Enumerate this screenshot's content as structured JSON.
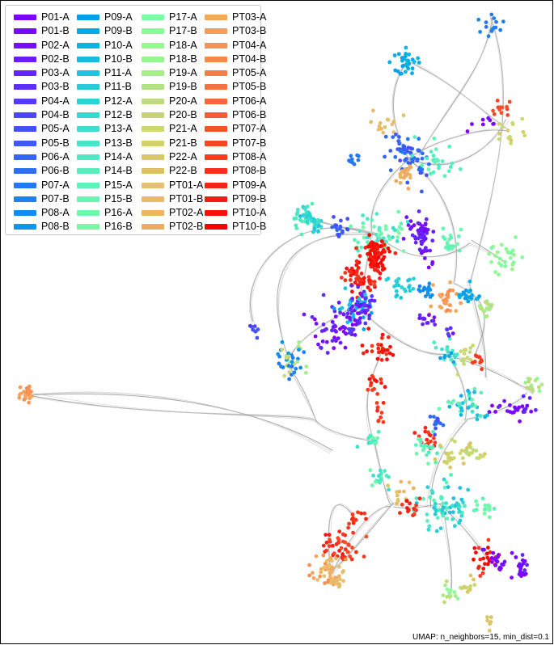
{
  "chart_data": {
    "type": "scatter",
    "title": "",
    "xlabel": "",
    "ylabel": "",
    "axes_visible": false,
    "legend_position": "top-left",
    "legend_columns": 4,
    "annotation": "UMAP: n_neighbors=15, min_dist=0.1",
    "series": [
      {
        "name": "P01-A",
        "color": "#7f00ff"
      },
      {
        "name": "P01-B",
        "color": "#7a08ff"
      },
      {
        "name": "P02-A",
        "color": "#7310ff"
      },
      {
        "name": "P02-B",
        "color": "#6c1bfe"
      },
      {
        "name": "P03-A",
        "color": "#6426fe"
      },
      {
        "name": "P03-B",
        "color": "#5c30fd"
      },
      {
        "name": "P04-A",
        "color": "#543bfc"
      },
      {
        "name": "P04-B",
        "color": "#4c46fb"
      },
      {
        "name": "P05-A",
        "color": "#4450fa"
      },
      {
        "name": "P05-B",
        "color": "#3c5af8"
      },
      {
        "name": "P06-A",
        "color": "#3465f7"
      },
      {
        "name": "P06-B",
        "color": "#2c6ff5"
      },
      {
        "name": "P07-A",
        "color": "#2479f3"
      },
      {
        "name": "P07-B",
        "color": "#1c83f1"
      },
      {
        "name": "P08-A",
        "color": "#148cef"
      },
      {
        "name": "P08-B",
        "color": "#0c96ec"
      },
      {
        "name": "P09-A",
        "color": "#04a0e9"
      },
      {
        "name": "P09-B",
        "color": "#06aae6"
      },
      {
        "name": "P10-A",
        "color": "#0eb2e3"
      },
      {
        "name": "P10-B",
        "color": "#16bbe0"
      },
      {
        "name": "P11-A",
        "color": "#1ec3dc"
      },
      {
        "name": "P11-B",
        "color": "#26cbd8"
      },
      {
        "name": "P12-A",
        "color": "#2ed2d4"
      },
      {
        "name": "P12-B",
        "color": "#36d9d0"
      },
      {
        "name": "P13-A",
        "color": "#3edfcc"
      },
      {
        "name": "P13-B",
        "color": "#46e5c7"
      },
      {
        "name": "P14-A",
        "color": "#4eeac2"
      },
      {
        "name": "P14-B",
        "color": "#56eebd"
      },
      {
        "name": "P15-A",
        "color": "#5ef2b8"
      },
      {
        "name": "P15-B",
        "color": "#66f5b2"
      },
      {
        "name": "P16-A",
        "color": "#6ef8ad"
      },
      {
        "name": "P16-B",
        "color": "#76faa7"
      },
      {
        "name": "P17-A",
        "color": "#7efca1"
      },
      {
        "name": "P17-B",
        "color": "#86fd9b"
      },
      {
        "name": "P18-A",
        "color": "#90fb95"
      },
      {
        "name": "P18-B",
        "color": "#9af48e"
      },
      {
        "name": "P19-A",
        "color": "#a6ec88"
      },
      {
        "name": "P19-B",
        "color": "#b2e382"
      },
      {
        "name": "P20-A",
        "color": "#bedc7c"
      },
      {
        "name": "P20-B",
        "color": "#c8d376"
      },
      {
        "name": "P21-A",
        "color": "#ccd870"
      },
      {
        "name": "P21-B",
        "color": "#d2d06a"
      },
      {
        "name": "P22-A",
        "color": "#d8c864"
      },
      {
        "name": "P22-B",
        "color": "#dec05e"
      },
      {
        "name": "PT01-A",
        "color": "#e4c070"
      },
      {
        "name": "PT01-B",
        "color": "#e8bb68"
      },
      {
        "name": "PT02-A",
        "color": "#ecb463"
      },
      {
        "name": "PT02-B",
        "color": "#f0ac5e"
      },
      {
        "name": "PT03-A",
        "color": "#f5a75e"
      },
      {
        "name": "PT03-B",
        "color": "#f59c58"
      },
      {
        "name": "PT04-A",
        "color": "#f69252"
      },
      {
        "name": "PT04-B",
        "color": "#f7884b"
      },
      {
        "name": "PT05-A",
        "color": "#f77d45"
      },
      {
        "name": "PT05-B",
        "color": "#f7723f"
      },
      {
        "name": "PT06-A",
        "color": "#f76739"
      },
      {
        "name": "PT06-B",
        "color": "#f75c33"
      },
      {
        "name": "PT07-A",
        "color": "#f7512c"
      },
      {
        "name": "PT07-B",
        "color": "#f74626"
      },
      {
        "name": "PT08-A",
        "color": "#f73b20"
      },
      {
        "name": "PT08-B",
        "color": "#f7301a"
      },
      {
        "name": "PT09-A",
        "color": "#f72514"
      },
      {
        "name": "PT09-B",
        "color": "#f71a0e"
      },
      {
        "name": "PT10-A",
        "color": "#f70f08"
      },
      {
        "name": "PT10-B",
        "color": "#f70402"
      }
    ]
  }
}
